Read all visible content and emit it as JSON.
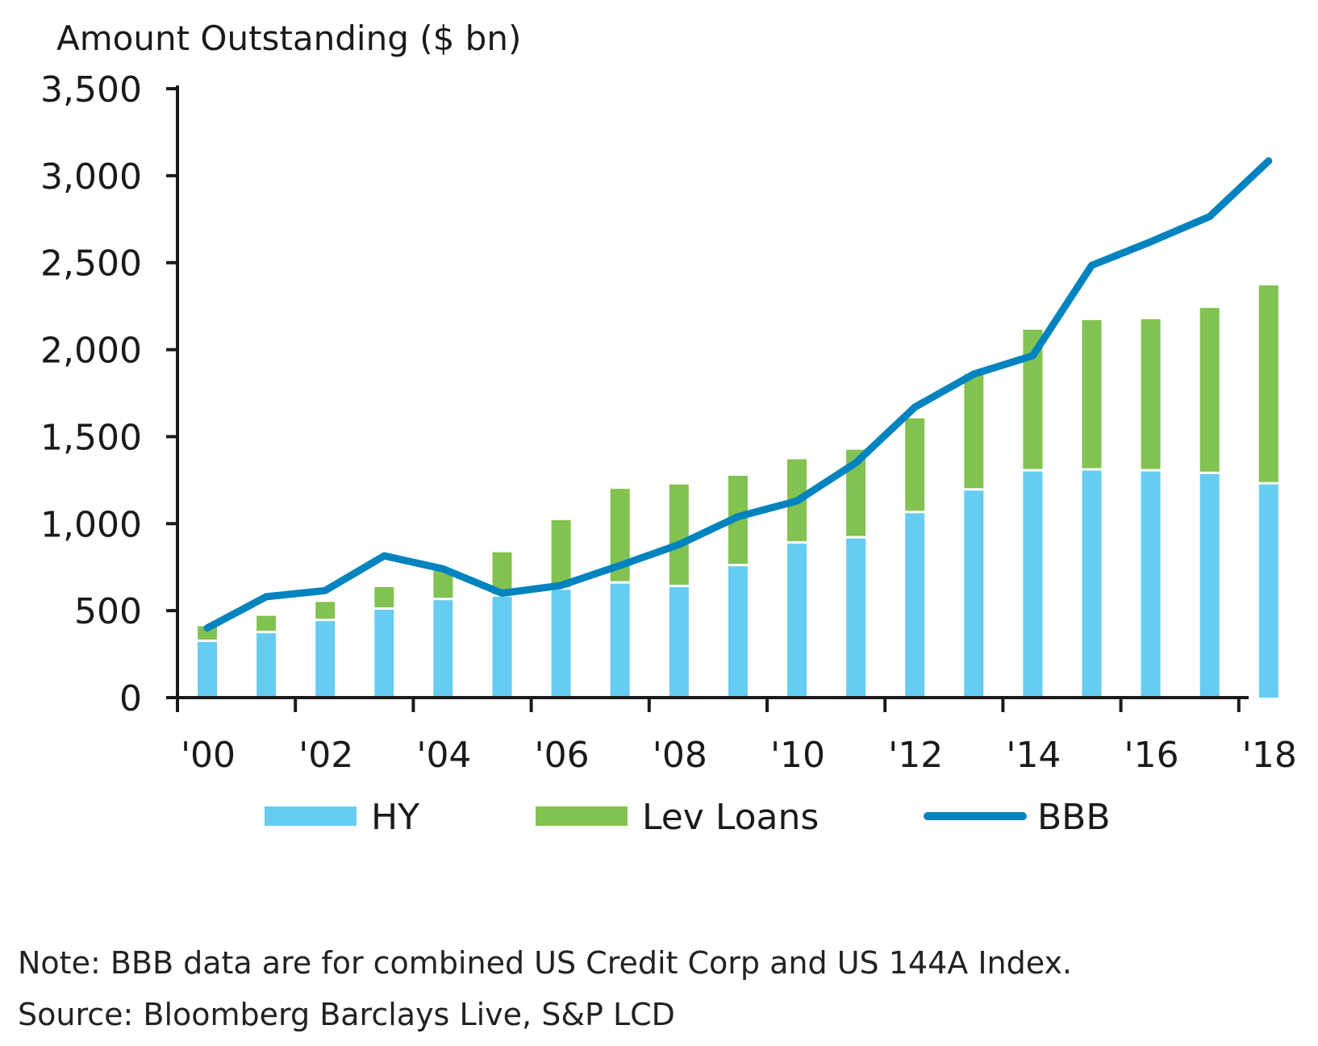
{
  "chart_data": {
    "type": "bar",
    "ylabel": "Amount Outstanding ($ bn)",
    "ylim": [
      0,
      3500
    ],
    "yticks": [
      0,
      500,
      1000,
      1500,
      2000,
      2500,
      3000,
      3500
    ],
    "ytick_labels": [
      "0",
      "500",
      "1,000",
      "1,500",
      "2,000",
      "2,500",
      "3,000",
      "3,500"
    ],
    "xtick_labels": [
      "'00",
      "'02",
      "'04",
      "'06",
      "'08",
      "'10",
      "'12",
      "'14",
      "'16",
      "'18"
    ],
    "categories": [
      "2000",
      "2001",
      "2002",
      "2003",
      "2004",
      "2005",
      "2006",
      "2007",
      "2008",
      "2009",
      "2010",
      "2011",
      "2012",
      "2013",
      "2014",
      "2015",
      "2016",
      "2017",
      "2018"
    ],
    "stacked": true,
    "series": [
      {
        "name": "HY",
        "kind": "bar",
        "values": [
          320,
          370,
          440,
          505,
          560,
          580,
          620,
          655,
          635,
          755,
          885,
          915,
          1060,
          1190,
          1300,
          1305,
          1300,
          1285,
          1225
        ]
      },
      {
        "name": "Lev Loans",
        "kind": "bar",
        "values": [
          90,
          100,
          110,
          130,
          180,
          255,
          400,
          545,
          590,
          520,
          485,
          510,
          545,
          670,
          815,
          865,
          875,
          955,
          1145
        ]
      },
      {
        "name": "BBB",
        "kind": "line",
        "values": [
          400,
          580,
          615,
          815,
          740,
          600,
          645,
          760,
          880,
          1040,
          1130,
          1350,
          1670,
          1860,
          1965,
          2485,
          2620,
          2765,
          3085
        ]
      }
    ],
    "colors": {
      "HY": "#66ccf2",
      "Lev Loans": "#82c250",
      "BBB": "#0083be",
      "axis": "#1a1a1a"
    },
    "legend": [
      "HY",
      "Lev Loans",
      "BBB"
    ],
    "legend_position": "bottom",
    "grid": false
  },
  "notes": {
    "line1": "Note: BBB data are for combined US Credit Corp and US 144A Index.",
    "line2": "Source: Bloomberg Barclays Live, S&P LCD"
  }
}
